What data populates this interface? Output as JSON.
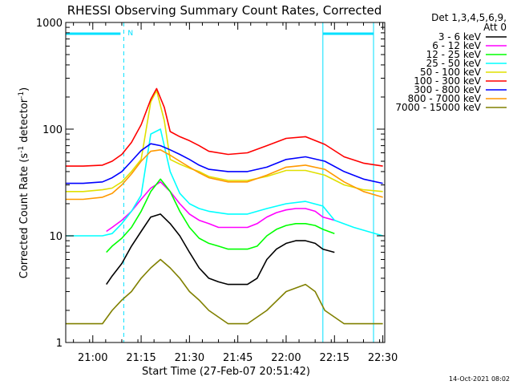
{
  "chart_data": {
    "type": "line",
    "title": "RHESSI Observing Summary Count Rates, Corrected",
    "xlabel": "Start Time (27-Feb-07 20:51:42)",
    "ylabel_main": "Corrected Count Rate (s",
    "ylabel_sup1": "-1",
    "ylabel_mid": " detector",
    "ylabel_sup2": "-1",
    "ylabel_end": ")",
    "yscale": "log",
    "ylim": [
      1,
      1000
    ],
    "xlim": [
      20.86,
      22.51
    ],
    "yticks": [
      {
        "value": 1,
        "label": "1"
      },
      {
        "value": 10,
        "label": "10"
      },
      {
        "value": 100,
        "label": "100"
      },
      {
        "value": 1000,
        "label": "1000"
      }
    ],
    "xticks": [
      {
        "value": 21.0,
        "label": "21:00"
      },
      {
        "value": 21.25,
        "label": "21:15"
      },
      {
        "value": 21.5,
        "label": "21:30"
      },
      {
        "value": 21.75,
        "label": "21:45"
      },
      {
        "value": 22.0,
        "label": "22:00"
      },
      {
        "value": 22.25,
        "label": "22:15"
      },
      {
        "value": 22.5,
        "label": "22:30"
      }
    ],
    "legend": {
      "header1": "Det 1,3,4,5,6,9,",
      "header2": "Att 0",
      "placement": "right"
    },
    "flags": {
      "label": "N",
      "color": "#00e0ff",
      "night_start": 21.16,
      "night_end": 22.19
    },
    "footer": "14-Oct-2021 08:02",
    "series": [
      {
        "name": "3 - 6 keV",
        "color": "#000000",
        "x": [
          21.07,
          21.1,
          21.15,
          21.2,
          21.25,
          21.3,
          21.35,
          21.4,
          21.45,
          21.5,
          21.55,
          21.6,
          21.65,
          21.7,
          21.75,
          21.8,
          21.85,
          21.9,
          21.95,
          22.0,
          22.05,
          22.1,
          22.15,
          22.19,
          22.25
        ],
        "y": [
          3.5,
          4.2,
          5.5,
          8,
          11,
          15,
          16,
          13,
          10,
          7,
          5,
          4,
          3.7,
          3.5,
          3.5,
          3.5,
          4,
          6,
          7.5,
          8.5,
          9,
          9,
          8.5,
          7.5,
          7
        ]
      },
      {
        "name": "6 - 12 keV",
        "color": "#ff00ff",
        "x": [
          21.07,
          21.1,
          21.15,
          21.2,
          21.25,
          21.3,
          21.35,
          21.4,
          21.45,
          21.5,
          21.55,
          21.6,
          21.65,
          21.7,
          21.75,
          21.8,
          21.85,
          21.9,
          21.95,
          22.0,
          22.05,
          22.1,
          22.15,
          22.19,
          22.25
        ],
        "y": [
          11,
          12,
          14,
          17,
          22,
          28,
          32,
          26,
          20,
          16,
          14,
          13,
          12,
          12,
          12,
          12,
          13,
          15,
          16.5,
          17.5,
          18,
          18,
          17,
          15,
          14
        ]
      },
      {
        "name": "12 - 25 keV",
        "color": "#00ff00",
        "x": [
          21.07,
          21.1,
          21.15,
          21.2,
          21.25,
          21.3,
          21.35,
          21.4,
          21.45,
          21.5,
          21.55,
          21.6,
          21.65,
          21.7,
          21.75,
          21.8,
          21.85,
          21.9,
          21.95,
          22.0,
          22.05,
          22.1,
          22.15,
          22.19,
          22.25
        ],
        "y": [
          7,
          8,
          9.5,
          12,
          17,
          26,
          34,
          26,
          17,
          12,
          9.5,
          8.5,
          8,
          7.5,
          7.5,
          7.5,
          8,
          10,
          11.5,
          12.5,
          13,
          13,
          12.5,
          11.5,
          10.5
        ]
      },
      {
        "name": "25 - 50 keV",
        "color": "#00ffff",
        "x": [
          20.86,
          20.95,
          21.05,
          21.1,
          21.15,
          21.2,
          21.25,
          21.3,
          21.35,
          21.4,
          21.45,
          21.5,
          21.55,
          21.6,
          21.7,
          21.8,
          21.9,
          22.0,
          22.1,
          22.19,
          22.25,
          22.35,
          22.5
        ],
        "y": [
          10,
          10,
          10,
          10.5,
          13,
          17,
          24,
          90,
          100,
          40,
          25,
          20,
          18,
          17,
          16,
          16,
          18,
          20,
          21,
          19,
          14,
          12,
          10
        ]
      },
      {
        "name": "50 - 100 keV",
        "color": "#e0e000",
        "x": [
          20.86,
          20.95,
          21.05,
          21.1,
          21.15,
          21.2,
          21.25,
          21.3,
          21.33,
          21.37,
          21.4,
          21.45,
          21.5,
          21.55,
          21.6,
          21.7,
          21.8,
          21.9,
          22.0,
          22.1,
          22.2,
          22.3,
          22.4,
          22.5
        ],
        "y": [
          26,
          26,
          27,
          28,
          32,
          40,
          52,
          180,
          230,
          120,
          52,
          47,
          43,
          40,
          36,
          33,
          33,
          36,
          41,
          41,
          37,
          30,
          27,
          26
        ]
      },
      {
        "name": "100 - 300 keV",
        "color": "#ff0000",
        "x": [
          20.86,
          20.95,
          21.05,
          21.1,
          21.15,
          21.2,
          21.25,
          21.3,
          21.33,
          21.37,
          21.4,
          21.45,
          21.5,
          21.55,
          21.6,
          21.7,
          21.8,
          21.9,
          22.0,
          22.1,
          22.2,
          22.3,
          22.4,
          22.5
        ],
        "y": [
          45,
          45,
          46,
          50,
          58,
          75,
          110,
          190,
          240,
          160,
          95,
          85,
          78,
          70,
          62,
          58,
          60,
          70,
          82,
          85,
          72,
          55,
          48,
          45
        ]
      },
      {
        "name": "300 - 800 keV",
        "color": "#0000ff",
        "x": [
          20.86,
          20.95,
          21.05,
          21.1,
          21.15,
          21.2,
          21.25,
          21.3,
          21.35,
          21.4,
          21.45,
          21.5,
          21.55,
          21.6,
          21.7,
          21.8,
          21.9,
          22.0,
          22.1,
          22.2,
          22.3,
          22.4,
          22.5
        ],
        "y": [
          31,
          31,
          32,
          35,
          40,
          50,
          63,
          73,
          70,
          64,
          58,
          52,
          46,
          42,
          40,
          40,
          44,
          52,
          55,
          50,
          40,
          34,
          31
        ]
      },
      {
        "name": "800 - 7000 keV",
        "color": "#ff9900",
        "x": [
          20.86,
          20.95,
          21.05,
          21.1,
          21.15,
          21.2,
          21.25,
          21.3,
          21.35,
          21.4,
          21.45,
          21.5,
          21.55,
          21.6,
          21.7,
          21.8,
          21.9,
          22.0,
          22.1,
          22.2,
          22.3,
          22.4,
          22.5
        ],
        "y": [
          22,
          22,
          23,
          25,
          30,
          38,
          50,
          62,
          64,
          57,
          50,
          44,
          39,
          35,
          32,
          32,
          37,
          44,
          46,
          42,
          32,
          26,
          23
        ]
      },
      {
        "name": "7000 - 15000 keV",
        "color": "#808000",
        "x": [
          20.86,
          20.95,
          21.05,
          21.1,
          21.15,
          21.2,
          21.25,
          21.3,
          21.35,
          21.4,
          21.45,
          21.5,
          21.55,
          21.6,
          21.7,
          21.8,
          21.9,
          22.0,
          22.1,
          22.15,
          22.2,
          22.3,
          22.4,
          22.5
        ],
        "y": [
          1.5,
          1.5,
          1.5,
          2,
          2.5,
          3,
          4,
          5,
          6,
          5,
          4,
          3,
          2.5,
          2,
          1.5,
          1.5,
          2,
          3,
          3.5,
          3,
          2,
          1.5,
          1.5,
          1.5
        ]
      }
    ]
  }
}
